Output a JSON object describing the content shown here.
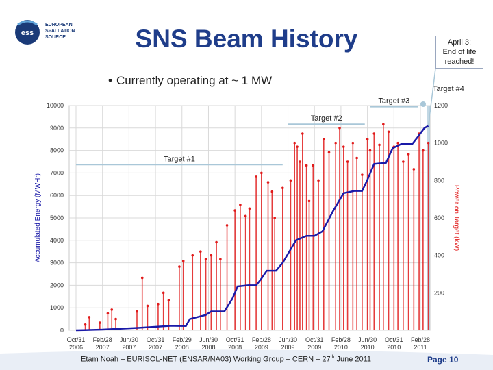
{
  "header": {
    "logo_lines": [
      "EUROPEAN",
      "SPALLATION",
      "SOURCE"
    ],
    "logo_mark": "ess",
    "title": "SNS Beam History",
    "callout": [
      "April 3:",
      "End of life",
      "reached!"
    ]
  },
  "bullet": "Currently operating at ~ 1 MW",
  "target_label_top": "Target #4",
  "footer": {
    "text_before_sup": "Etam Noah – EURISOL-NET (ENSAR/NA03) Working Group – CERN – 27",
    "sup": "th",
    "text_after_sup": " June 2011",
    "page": "Page 10"
  },
  "colors": {
    "title": "#1f3d8a",
    "accumulated": "#1a1aa8",
    "power": "#e11b1b",
    "grid": "#d9d9d9",
    "target_line": "#a9c7d8"
  },
  "chart_data": {
    "type": "line",
    "ylabel": "Accumulated Energy (MWHr)",
    "y2label": "Power on Target (kW)",
    "ylim": [
      0,
      10000
    ],
    "y2lim": [
      0,
      1200
    ],
    "yticks": [
      "0",
      "1000",
      "2000",
      "3000",
      "4000",
      "5000",
      "6000",
      "7000",
      "8000",
      "9000",
      "10000"
    ],
    "y2ticks": [
      "200",
      "400",
      "600",
      "800",
      "1000",
      "1200"
    ],
    "xticks": [
      {
        "l1": "Oct/31",
        "l2": "2006"
      },
      {
        "l1": "Feb/28",
        "l2": "2007"
      },
      {
        "l1": "Jun/30",
        "l2": "2007"
      },
      {
        "l1": "Oct/31",
        "l2": "2007"
      },
      {
        "l1": "Feb/29",
        "l2": "2008"
      },
      {
        "l1": "Jun/30",
        "l2": "2008"
      },
      {
        "l1": "Oct/31",
        "l2": "2008"
      },
      {
        "l1": "Feb/28",
        "l2": "2009"
      },
      {
        "l1": "Jun/30",
        "l2": "2009"
      },
      {
        "l1": "Oct/31",
        "l2": "2009"
      },
      {
        "l1": "Feb/28",
        "l2": "2010"
      },
      {
        "l1": "Jun/30",
        "l2": "2010"
      },
      {
        "l1": "Oct/31",
        "l2": "2010"
      },
      {
        "l1": "Feb/28",
        "l2": "2011"
      }
    ],
    "target_spans": [
      {
        "label": "Target #1",
        "x_from": 0,
        "x_to": 7.8,
        "y": 7370
      },
      {
        "label": "Target #2",
        "x_from": 8.0,
        "x_to": 10.9,
        "y": 9170
      },
      {
        "label": "Target #3",
        "x_from": 11.1,
        "x_to": 12.9,
        "y": 9950
      }
    ],
    "accumulated_energy": {
      "name": "Accumulated Energy",
      "x": [
        0,
        1.0,
        2.4,
        3.6,
        4.15,
        4.3,
        4.9,
        5.1,
        5.6,
        5.9,
        6.1,
        6.5,
        6.8,
        7.0,
        7.2,
        7.55,
        7.8,
        8.05,
        8.3,
        8.7,
        9.0,
        9.3,
        9.7,
        10.1,
        10.5,
        10.8,
        11.0,
        11.25,
        11.7,
        11.95,
        12.3,
        12.7,
        12.9,
        13.15,
        13.3
      ],
      "y": [
        0,
        30,
        110,
        200,
        190,
        500,
        680,
        840,
        840,
        1400,
        1950,
        2000,
        2000,
        2300,
        2650,
        2650,
        3000,
        3500,
        4000,
        4200,
        4200,
        4400,
        5300,
        6100,
        6200,
        6200,
        6700,
        7400,
        7450,
        8100,
        8300,
        8300,
        8600,
        9000,
        9100
      ]
    },
    "power_on_target": {
      "name": "Power on Target",
      "x": [
        0.35,
        0.5,
        0.9,
        1.2,
        1.35,
        1.5,
        2.3,
        2.5,
        2.7,
        3.1,
        3.3,
        3.5,
        3.9,
        4.05,
        4.4,
        4.7,
        4.9,
        5.1,
        5.3,
        5.45,
        5.7,
        6.0,
        6.2,
        6.4,
        6.55,
        6.8,
        7.0,
        7.25,
        7.4,
        7.5,
        7.8,
        8.1,
        8.25,
        8.35,
        8.45,
        8.55,
        8.7,
        8.8,
        8.95,
        9.15,
        9.35,
        9.55,
        9.8,
        9.95,
        10.1,
        10.25,
        10.45,
        10.6,
        10.8,
        11.0,
        11.1,
        11.25,
        11.45,
        11.6,
        11.8,
        12.0,
        12.15,
        12.35,
        12.55,
        12.75,
        12.95,
        13.1,
        13.3
      ],
      "y": [
        30,
        70,
        40,
        90,
        110,
        60,
        100,
        280,
        130,
        140,
        200,
        160,
        340,
        370,
        400,
        420,
        380,
        400,
        470,
        380,
        560,
        640,
        670,
        610,
        650,
        820,
        840,
        790,
        740,
        600,
        760,
        800,
        1000,
        980,
        900,
        1050,
        880,
        690,
        880,
        800,
        1020,
        950,
        1000,
        1080,
        980,
        900,
        1000,
        920,
        830,
        1020,
        960,
        1050,
        990,
        1100,
        1060,
        980,
        1000,
        900,
        940,
        860,
        1050,
        960,
        1000
      ]
    }
  }
}
